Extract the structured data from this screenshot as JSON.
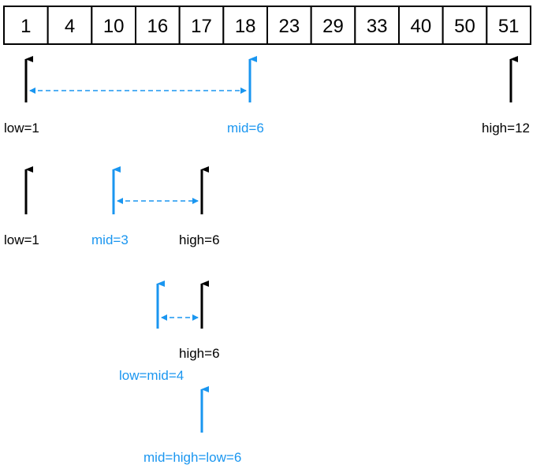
{
  "colors": {
    "black": "#000000",
    "blue": "#1a96f0"
  },
  "array": {
    "values": [
      "1",
      "4",
      "10",
      "16",
      "17",
      "18",
      "23",
      "29",
      "33",
      "40",
      "50",
      "51"
    ]
  },
  "steps": [
    {
      "low": "low=1",
      "mid": "mid=6",
      "high": "high=12"
    },
    {
      "low": "low=1",
      "mid": "mid=3",
      "high": "high=6"
    },
    {
      "high": "high=6",
      "low_mid": "low=mid=4"
    },
    {
      "final": "mid=high=low=6"
    }
  ]
}
